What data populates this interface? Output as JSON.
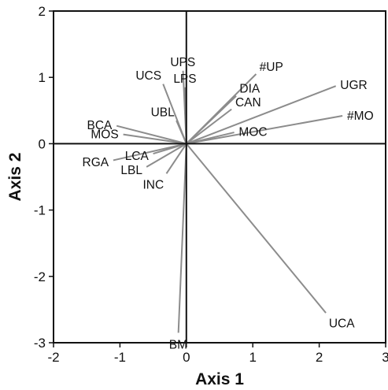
{
  "chart_data": {
    "type": "biplot",
    "xlabel": "Axis 1",
    "ylabel": "Axis 2",
    "xlim": [
      -2,
      3
    ],
    "ylim": [
      -3,
      2
    ],
    "xticks": [
      "-2",
      "-1",
      "0",
      "1",
      "2",
      "3"
    ],
    "yticks": [
      "-3",
      "-2",
      "-1",
      "0",
      "1",
      "2"
    ],
    "reference_lines": [
      {
        "axis": "x",
        "value": 0
      },
      {
        "axis": "y",
        "value": 0
      }
    ],
    "grid": false,
    "legend": "none",
    "line_color": "#8c8c8c",
    "vectors": [
      {
        "name": "UPS",
        "x": -0.05,
        "y": 1.1
      },
      {
        "name": "UCS",
        "x": -0.35,
        "y": 0.9
      },
      {
        "name": "LPS",
        "x": -0.02,
        "y": 0.85
      },
      {
        "name": "#UP",
        "x": 1.05,
        "y": 1.05
      },
      {
        "name": "DIA",
        "x": 0.75,
        "y": 0.72
      },
      {
        "name": "UGR",
        "x": 2.25,
        "y": 0.87
      },
      {
        "name": "CAN",
        "x": 0.68,
        "y": 0.52
      },
      {
        "name": "#MO",
        "x": 2.35,
        "y": 0.42
      },
      {
        "name": "MOC",
        "x": 0.72,
        "y": 0.17
      },
      {
        "name": "UBL",
        "x": -0.15,
        "y": 0.35
      },
      {
        "name": "BCA",
        "x": -1.05,
        "y": 0.27
      },
      {
        "name": "MOS",
        "x": -0.95,
        "y": 0.14
      },
      {
        "name": "LCA",
        "x": -0.5,
        "y": -0.15
      },
      {
        "name": "RGA",
        "x": -1.1,
        "y": -0.25
      },
      {
        "name": "LBL",
        "x": -0.6,
        "y": -0.35
      },
      {
        "name": "INC",
        "x": -0.3,
        "y": -0.45
      },
      {
        "name": "UCA",
        "x": 2.1,
        "y": -2.55
      },
      {
        "name": "BM",
        "x": -0.12,
        "y": -2.85
      }
    ]
  }
}
